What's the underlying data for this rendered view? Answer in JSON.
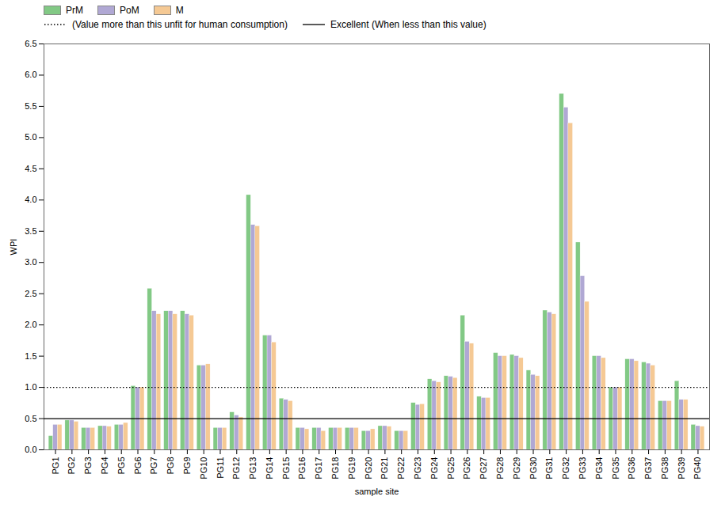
{
  "chart_data": {
    "type": "bar",
    "categories": [
      "PG1",
      "PG2",
      "PG3",
      "PG4",
      "PG5",
      "PG6",
      "PG7",
      "PG8",
      "PG9",
      "PG10",
      "PG11",
      "PG12",
      "PG13",
      "PG14",
      "PG15",
      "PG16",
      "PG17",
      "PG18",
      "PG19",
      "PG20",
      "PG21",
      "PG22",
      "PG23",
      "PG24",
      "PG25",
      "PG26",
      "PG27",
      "PG28",
      "PG29",
      "PG30",
      "PG31",
      "PG32",
      "PG33",
      "PG34",
      "PG35",
      "PG36",
      "PG37",
      "PG38",
      "PG39",
      "PG40"
    ],
    "series": [
      {
        "name": "PrM",
        "color": "#82c985",
        "values": [
          0.22,
          0.47,
          0.35,
          0.38,
          0.4,
          1.02,
          2.58,
          2.22,
          2.22,
          1.35,
          0.35,
          0.6,
          4.08,
          1.83,
          0.82,
          0.35,
          0.35,
          0.35,
          0.35,
          0.3,
          0.38,
          0.3,
          0.75,
          1.13,
          1.18,
          2.15,
          0.85,
          1.55,
          1.52,
          1.27,
          2.23,
          5.7,
          3.32,
          1.5,
          1.0,
          1.45,
          1.4,
          0.78,
          1.1,
          0.4
        ]
      },
      {
        "name": "PoM",
        "color": "#b0a8d4",
        "values": [
          0.4,
          0.47,
          0.35,
          0.38,
          0.4,
          1.0,
          2.22,
          2.22,
          2.17,
          1.35,
          0.35,
          0.55,
          3.6,
          1.83,
          0.8,
          0.35,
          0.35,
          0.35,
          0.35,
          0.3,
          0.38,
          0.3,
          0.72,
          1.1,
          1.17,
          1.73,
          0.83,
          1.5,
          1.5,
          1.2,
          2.2,
          5.48,
          2.78,
          1.5,
          1.0,
          1.45,
          1.38,
          0.78,
          0.8,
          0.38
        ]
      },
      {
        "name": "M",
        "color": "#f5c994",
        "values": [
          0.4,
          0.45,
          0.35,
          0.37,
          0.43,
          1.0,
          2.17,
          2.17,
          2.15,
          1.37,
          0.35,
          0.52,
          3.58,
          1.72,
          0.78,
          0.33,
          0.3,
          0.35,
          0.35,
          0.33,
          0.37,
          0.3,
          0.73,
          1.08,
          1.15,
          1.7,
          0.83,
          1.5,
          1.47,
          1.18,
          2.17,
          5.23,
          2.37,
          1.47,
          1.0,
          1.42,
          1.35,
          0.78,
          0.8,
          0.37
        ]
      }
    ],
    "xlabel": "sample site",
    "ylabel": "WPI",
    "ylim": [
      0.0,
      6.5
    ],
    "yticks": [
      {
        "value": 0,
        "label": "0.0"
      },
      0.5,
      {
        "value": 1,
        "label": "1.0"
      },
      1.5,
      {
        "value": 2,
        "label": "2.0"
      },
      2.5,
      {
        "value": 3,
        "label": "3.0"
      },
      3.5,
      {
        "value": 4,
        "label": "4.0"
      },
      4.5,
      {
        "value": 5,
        "label": "5.0"
      },
      5.5,
      {
        "value": 6,
        "label": "6.0"
      },
      6.5
    ],
    "annotations": [
      {
        "text": "(Value more than this unfit for human consumption)",
        "y": 1.0,
        "line_style": "dotted"
      },
      {
        "text": "Excellent  (When less than this value)",
        "y": 0.5,
        "line_style": "solid"
      }
    ],
    "legend": "upper left",
    "grid": false
  }
}
